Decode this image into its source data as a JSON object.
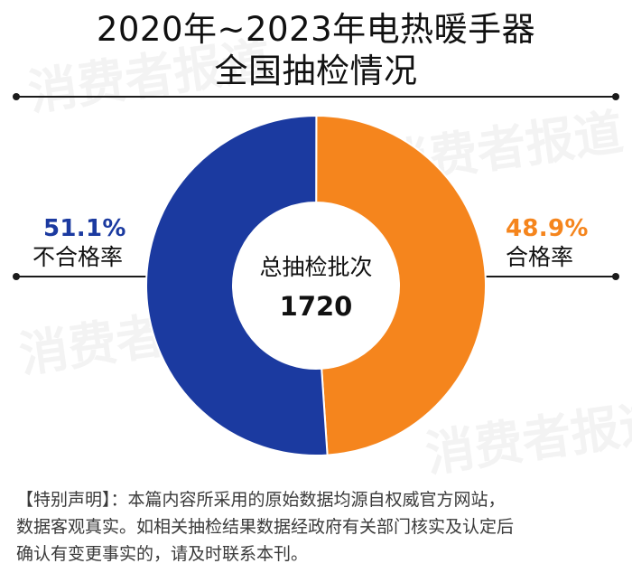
{
  "title": {
    "line1": "2020年~2023年电热暖手器",
    "line2": "全国抽检情况"
  },
  "chart_data": {
    "type": "pie",
    "title": "2020年~2023年电热暖手器全国抽检情况",
    "total_label": "总抽检批次",
    "total_value": "1720",
    "slices": [
      {
        "label": "合格率",
        "value": 48.9,
        "display": "48.9%",
        "color": "#f5851d"
      },
      {
        "label": "不合格率",
        "value": 51.1,
        "display": "51.1%",
        "color": "#1b3aa0"
      }
    ]
  },
  "disclaimer": {
    "line1": "【特别声明】：本篇内容所采用的原始数据均源自权威官方网站，",
    "line2": "数据客观真实。如相关抽检结果数据经政府有关部门核实及认定后",
    "line3": "确认有变更事实的，请及时联系本刊。"
  }
}
